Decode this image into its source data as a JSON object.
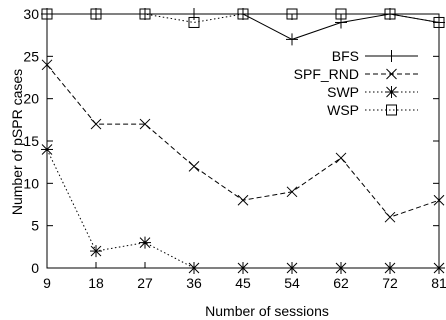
{
  "chart_data": {
    "type": "line",
    "title": "",
    "xlabel": "Number of sessions",
    "ylabel": "Number of pSPR cases",
    "categories": [
      "9",
      "18",
      "27",
      "36",
      "45",
      "54",
      "62",
      "72",
      "81"
    ],
    "ylim": [
      0,
      30
    ],
    "yticks": [
      "0",
      "5",
      "10",
      "15",
      "20",
      "25",
      "30"
    ],
    "grid": false,
    "legend_position": "right",
    "series": [
      {
        "name": "BFS",
        "marker": "plus",
        "line_style": "solid",
        "values": [
          30,
          30,
          30,
          30,
          30,
          27,
          29,
          30,
          29
        ]
      },
      {
        "name": "SPF_RND",
        "marker": "cross",
        "line_style": "dashed",
        "values": [
          24,
          17,
          17,
          12,
          8,
          9,
          13,
          6,
          8
        ]
      },
      {
        "name": "SWP",
        "marker": "star",
        "line_style": "dotted",
        "values": [
          14,
          2,
          3,
          0,
          0,
          0,
          0,
          0,
          0
        ]
      },
      {
        "name": "WSP",
        "marker": "square",
        "line_style": "dotted",
        "values": [
          30,
          30,
          30,
          29,
          30,
          30,
          30,
          30,
          29
        ]
      }
    ]
  }
}
